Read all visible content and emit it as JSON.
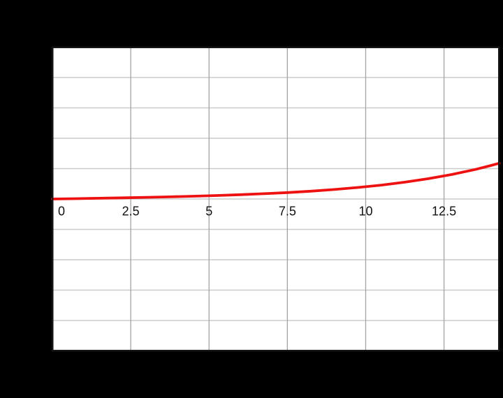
{
  "chart_data": {
    "type": "line",
    "title": "",
    "xlabel": "",
    "ylabel": "",
    "xlim": [
      0,
      14.26
    ],
    "ylim": [
      -5,
      5
    ],
    "x_tick_values": [
      0,
      2.5,
      5,
      7.5,
      10,
      12.5
    ],
    "x_tick_labels": [
      "0",
      "2.5",
      "5",
      "7.5",
      "10",
      "12.5"
    ],
    "y_gridline_values": [
      -4,
      -3,
      -2,
      -1,
      0,
      1,
      2,
      3,
      4
    ],
    "grid": true,
    "legend": false,
    "x_labels_position": "inside-at-zero-line",
    "series": [
      {
        "name": "red-curve",
        "color": "#ee1111",
        "x": [
          0,
          0.75,
          1.5,
          2.25,
          3,
          3.75,
          4.5,
          5.25,
          6,
          6.75,
          7.5,
          8.25,
          9,
          9.75,
          10.5,
          11.25,
          12,
          12.75,
          13.5,
          14,
          14.26
        ],
        "y": [
          0,
          0.0126,
          0.0256,
          0.0395,
          0.0548,
          0.0721,
          0.0918,
          0.1149,
          0.1419,
          0.174,
          0.2122,
          0.258,
          0.3127,
          0.3786,
          0.4577,
          0.553,
          0.6679,
          0.8062,
          0.973,
          1.1028,
          1.177
        ]
      }
    ]
  },
  "colors": {
    "page_background": "#000000",
    "plot_background": "#ffffff",
    "plot_border": "#161616",
    "horizontal_grid": "#cbcbcb",
    "vertical_grid": "#a3a3a3",
    "curve": "#ee1111",
    "tick_text": "#111111"
  }
}
